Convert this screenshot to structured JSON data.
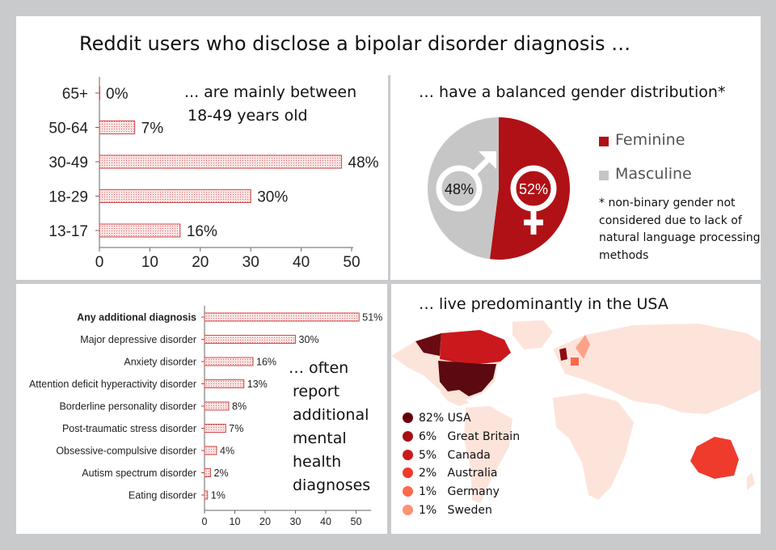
{
  "title": "Reddit users who disclose a bipolar disorder diagnosis …",
  "age_panel": {
    "caption_line1": "... are mainly between",
    "caption_line2": "18-49 years old"
  },
  "gender_panel": {
    "caption": "… have a balanced gender distribution*",
    "legend": [
      {
        "label": "Feminine",
        "color": "#b01116"
      },
      {
        "label": "Masculine",
        "color": "#c6c6c6"
      }
    ],
    "note": "* non-binary gender not considered due to lack of natural language processing methods"
  },
  "diag_panel": {
    "caption_lines": [
      "… often",
      "report",
      "additional",
      "mental",
      "health",
      "diagnoses"
    ]
  },
  "map_panel": {
    "caption": "… live predominantly in the USA",
    "legend": [
      {
        "label": "82% USA",
        "color": "#67000d"
      },
      {
        "label": "6%   Great Britain",
        "color": "#a50f15"
      },
      {
        "label": "5%   Canada",
        "color": "#cb181d"
      },
      {
        "label": "2%   Australia",
        "color": "#ef3b2c"
      },
      {
        "label": "1%   Germany",
        "color": "#fb6a4a"
      },
      {
        "label": "1%   Sweden",
        "color": "#fc9272"
      }
    ]
  },
  "chart_data": [
    {
      "type": "bar",
      "orientation": "horizontal",
      "categories": [
        "65+",
        "50-64",
        "30-49",
        "18-29",
        "13-17"
      ],
      "values": [
        0,
        7,
        48,
        30,
        16
      ],
      "value_labels": [
        "0%",
        "7%",
        "48%",
        "30%",
        "16%"
      ],
      "xlim": [
        0,
        50
      ],
      "xticks": [
        0,
        10,
        20,
        30,
        40,
        50
      ]
    },
    {
      "type": "pie",
      "slices": [
        {
          "name": "Feminine",
          "value": 52,
          "label": "52%",
          "color": "#b01116"
        },
        {
          "name": "Masculine",
          "value": 48,
          "label": "48%",
          "color": "#c6c6c6"
        }
      ]
    },
    {
      "type": "bar",
      "orientation": "horizontal",
      "categories": [
        "Any additional diagnosis",
        "Major depressive disorder",
        "Anxiety disorder",
        "Attention deficit hyperactivity disorder",
        "Borderline personality disorder",
        "Post-traumatic stress disorder",
        "Obsessive-compulsive disorder",
        "Autism spectrum disorder",
        "Eating disorder"
      ],
      "values": [
        51,
        30,
        16,
        13,
        8,
        7,
        4,
        2,
        1
      ],
      "value_labels": [
        "51%",
        "30%",
        "16%",
        "13%",
        "8%",
        "7%",
        "4%",
        "2%",
        "1%"
      ],
      "bold_first": true,
      "xlim": [
        0,
        55
      ],
      "xticks": [
        0,
        10,
        20,
        30,
        40,
        50
      ]
    }
  ]
}
